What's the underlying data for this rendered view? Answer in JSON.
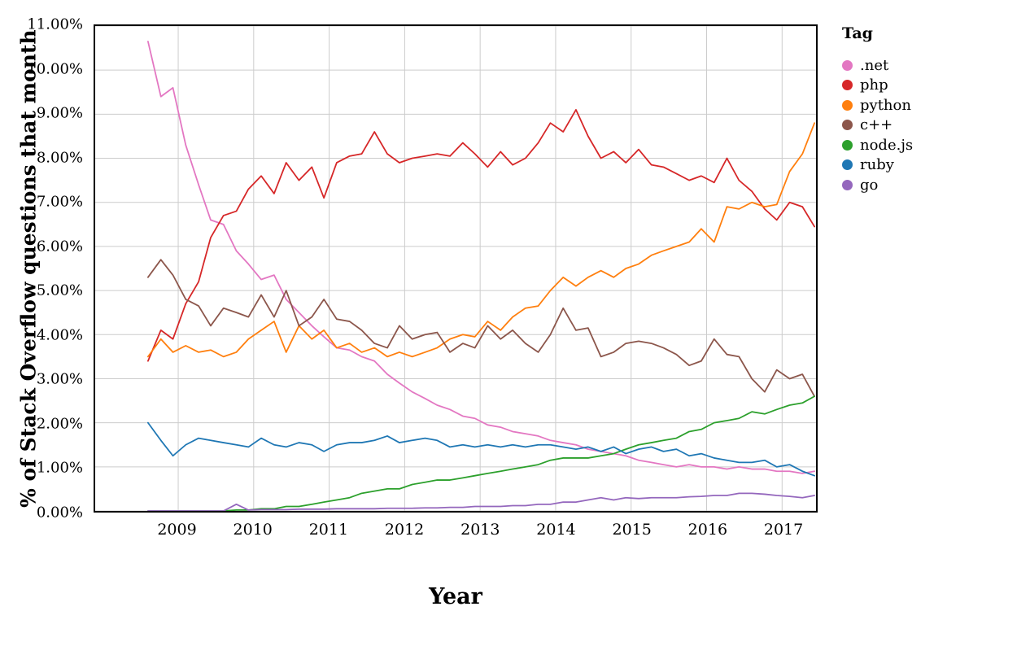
{
  "figure": {
    "background": "#ffffff"
  },
  "chart_data": {
    "type": "line",
    "title": "",
    "xlabel": "Year",
    "ylabel": "% of Stack Overflow questions that month",
    "legend_title": "Tag",
    "legend_position": "right",
    "grid": true,
    "grid_color": "#cccccc",
    "frame_color": "#000000",
    "xlim": [
      2007.9,
      2017.45
    ],
    "ylim": [
      0,
      11
    ],
    "xticks": [
      {
        "value": 2009,
        "label": "2009"
      },
      {
        "value": 2010,
        "label": "2010"
      },
      {
        "value": 2011,
        "label": "2011"
      },
      {
        "value": 2012,
        "label": "2012"
      },
      {
        "value": 2013,
        "label": "2013"
      },
      {
        "value": 2014,
        "label": "2014"
      },
      {
        "value": 2015,
        "label": "2015"
      },
      {
        "value": 2016,
        "label": "2016"
      },
      {
        "value": 2017,
        "label": "2017"
      }
    ],
    "yticks": [
      {
        "value": 0,
        "label": "0.00%"
      },
      {
        "value": 1,
        "label": "1.00%"
      },
      {
        "value": 2,
        "label": "2.00%"
      },
      {
        "value": 3,
        "label": "3.00%"
      },
      {
        "value": 4,
        "label": "4.00%"
      },
      {
        "value": 5,
        "label": "5.00%"
      },
      {
        "value": 6,
        "label": "6.00%"
      },
      {
        "value": 7,
        "label": "7.00%"
      },
      {
        "value": 8,
        "label": "8.00%"
      },
      {
        "value": 9,
        "label": "9.00%"
      },
      {
        "value": 10,
        "label": "10.00%"
      },
      {
        "value": 11,
        "label": "11.00%"
      }
    ],
    "x": [
      2008.6,
      2008.77,
      2008.93,
      2009.1,
      2009.27,
      2009.43,
      2009.6,
      2009.77,
      2009.93,
      2010.1,
      2010.27,
      2010.43,
      2010.6,
      2010.77,
      2010.93,
      2011.1,
      2011.27,
      2011.43,
      2011.6,
      2011.77,
      2011.93,
      2012.1,
      2012.27,
      2012.43,
      2012.6,
      2012.77,
      2012.93,
      2013.1,
      2013.27,
      2013.43,
      2013.6,
      2013.77,
      2013.93,
      2014.1,
      2014.27,
      2014.43,
      2014.6,
      2014.77,
      2014.93,
      2015.1,
      2015.27,
      2015.43,
      2015.6,
      2015.77,
      2015.93,
      2016.1,
      2016.27,
      2016.43,
      2016.6,
      2016.77,
      2016.93,
      2017.1,
      2017.27,
      2017.43
    ],
    "series": [
      {
        "name": ".net",
        "color": "#e377c2",
        "values": [
          10.65,
          9.4,
          9.6,
          8.3,
          7.4,
          6.6,
          6.5,
          5.9,
          5.6,
          5.25,
          5.35,
          4.8,
          4.5,
          4.2,
          3.95,
          3.7,
          3.65,
          3.5,
          3.4,
          3.1,
          2.9,
          2.7,
          2.55,
          2.4,
          2.3,
          2.15,
          2.1,
          1.95,
          1.9,
          1.8,
          1.75,
          1.7,
          1.6,
          1.55,
          1.5,
          1.4,
          1.35,
          1.3,
          1.25,
          1.15,
          1.1,
          1.05,
          1.0,
          1.05,
          1.0,
          1.0,
          0.95,
          1.0,
          0.95,
          0.95,
          0.9,
          0.9,
          0.85,
          0.9
        ]
      },
      {
        "name": "php",
        "color": "#d62728",
        "values": [
          3.4,
          4.1,
          3.9,
          4.7,
          5.2,
          6.2,
          6.7,
          6.8,
          7.3,
          7.6,
          7.2,
          7.9,
          7.5,
          7.8,
          7.1,
          7.9,
          8.05,
          8.1,
          8.6,
          8.1,
          7.9,
          8.0,
          8.05,
          8.1,
          8.05,
          8.35,
          8.1,
          7.8,
          8.15,
          7.85,
          8.0,
          8.35,
          8.8,
          8.6,
          9.1,
          8.5,
          8.0,
          8.15,
          7.9,
          8.2,
          7.85,
          7.8,
          7.65,
          7.5,
          7.6,
          7.45,
          8.0,
          7.5,
          7.25,
          6.85,
          6.6,
          7.0,
          6.9,
          6.45
        ]
      },
      {
        "name": "python",
        "color": "#ff7f0e",
        "values": [
          3.5,
          3.9,
          3.6,
          3.75,
          3.6,
          3.65,
          3.5,
          3.6,
          3.9,
          4.1,
          4.3,
          3.6,
          4.2,
          3.9,
          4.1,
          3.7,
          3.8,
          3.6,
          3.7,
          3.5,
          3.6,
          3.5,
          3.6,
          3.7,
          3.9,
          4.0,
          3.95,
          4.3,
          4.1,
          4.4,
          4.6,
          4.65,
          5.0,
          5.3,
          5.1,
          5.3,
          5.45,
          5.3,
          5.5,
          5.6,
          5.8,
          5.9,
          6.0,
          6.1,
          6.4,
          6.1,
          6.9,
          6.85,
          7.0,
          6.9,
          6.95,
          7.7,
          8.1,
          8.8
        ]
      },
      {
        "name": "c++",
        "color": "#8c564b",
        "values": [
          5.3,
          5.7,
          5.35,
          4.8,
          4.65,
          4.2,
          4.6,
          4.5,
          4.4,
          4.9,
          4.4,
          5.0,
          4.2,
          4.4,
          4.8,
          4.35,
          4.3,
          4.1,
          3.8,
          3.7,
          4.2,
          3.9,
          4.0,
          4.05,
          3.6,
          3.8,
          3.7,
          4.2,
          3.9,
          4.1,
          3.8,
          3.6,
          4.0,
          4.6,
          4.1,
          4.15,
          3.5,
          3.6,
          3.8,
          3.85,
          3.8,
          3.7,
          3.55,
          3.3,
          3.4,
          3.9,
          3.55,
          3.5,
          3.0,
          2.7,
          3.2,
          3.0,
          3.1,
          2.6
        ]
      },
      {
        "name": "node.js",
        "color": "#2ca02c",
        "values": [
          0.0,
          0.0,
          0.0,
          0.0,
          0.0,
          0.0,
          0.0,
          0.02,
          0.02,
          0.05,
          0.05,
          0.1,
          0.1,
          0.15,
          0.2,
          0.25,
          0.3,
          0.4,
          0.45,
          0.5,
          0.5,
          0.6,
          0.65,
          0.7,
          0.7,
          0.75,
          0.8,
          0.85,
          0.9,
          0.95,
          1.0,
          1.05,
          1.15,
          1.2,
          1.2,
          1.2,
          1.25,
          1.3,
          1.4,
          1.5,
          1.55,
          1.6,
          1.65,
          1.8,
          1.85,
          2.0,
          2.05,
          2.1,
          2.25,
          2.2,
          2.3,
          2.4,
          2.45,
          2.6
        ]
      },
      {
        "name": "ruby",
        "color": "#1f77b4",
        "values": [
          2.0,
          1.6,
          1.25,
          1.5,
          1.65,
          1.6,
          1.55,
          1.5,
          1.45,
          1.65,
          1.5,
          1.45,
          1.55,
          1.5,
          1.35,
          1.5,
          1.55,
          1.55,
          1.6,
          1.7,
          1.55,
          1.6,
          1.65,
          1.6,
          1.45,
          1.5,
          1.45,
          1.5,
          1.45,
          1.5,
          1.45,
          1.5,
          1.5,
          1.45,
          1.4,
          1.45,
          1.35,
          1.45,
          1.3,
          1.4,
          1.45,
          1.35,
          1.4,
          1.25,
          1.3,
          1.2,
          1.15,
          1.1,
          1.1,
          1.15,
          1.0,
          1.05,
          0.9,
          0.8
        ]
      },
      {
        "name": "go",
        "color": "#9467bd",
        "values": [
          0.0,
          0.0,
          0.0,
          0.0,
          0.0,
          0.0,
          0.0,
          0.15,
          0.02,
          0.03,
          0.03,
          0.03,
          0.04,
          0.04,
          0.04,
          0.05,
          0.05,
          0.05,
          0.05,
          0.06,
          0.06,
          0.06,
          0.07,
          0.07,
          0.08,
          0.08,
          0.1,
          0.1,
          0.1,
          0.12,
          0.12,
          0.15,
          0.15,
          0.2,
          0.2,
          0.25,
          0.3,
          0.25,
          0.3,
          0.28,
          0.3,
          0.3,
          0.3,
          0.32,
          0.33,
          0.35,
          0.35,
          0.4,
          0.4,
          0.38,
          0.35,
          0.33,
          0.3,
          0.35
        ]
      }
    ]
  }
}
